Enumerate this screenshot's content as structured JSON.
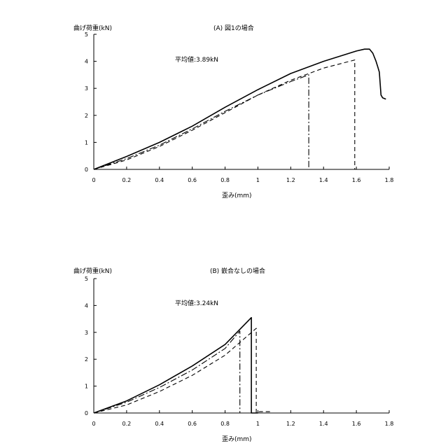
{
  "chart_data": [
    {
      "type": "line",
      "title": "(A) 図1の場合",
      "ylabel": "曲げ荷重(kN)",
      "xlabel": "歪み(mm)",
      "annotation": "平均値:3.89kN",
      "xlim": [
        0,
        1.8
      ],
      "ylim": [
        0,
        5
      ],
      "xticks": [
        "0",
        "0.2",
        "0.4",
        "0.6",
        "0.8",
        "1",
        "1.2",
        "1.4",
        "1.6",
        "1.8"
      ],
      "yticks": [
        "0",
        "1",
        "2",
        "3",
        "4",
        "5"
      ],
      "grid": false,
      "legend": "none",
      "series": [
        {
          "style": "solid",
          "x": [
            0,
            0.2,
            0.4,
            0.6,
            0.8,
            1.0,
            1.2,
            1.4,
            1.6,
            1.65,
            1.68,
            1.7,
            1.72,
            1.73,
            1.74,
            1.75,
            1.76,
            1.78
          ],
          "y": [
            0,
            0.48,
            1.0,
            1.6,
            2.3,
            2.95,
            3.55,
            4.0,
            4.38,
            4.45,
            4.45,
            4.3,
            4.0,
            3.8,
            3.6,
            2.75,
            2.65,
            2.6
          ]
        },
        {
          "style": "dashdot",
          "x": [
            0,
            0.2,
            0.4,
            0.6,
            0.8,
            1.0,
            1.2,
            1.31,
            1.31,
            1.33,
            1.48
          ],
          "y": [
            0,
            0.4,
            0.9,
            1.5,
            2.15,
            2.75,
            3.25,
            3.5,
            0,
            0,
            0
          ]
        },
        {
          "style": "dash",
          "x": [
            0,
            0.2,
            0.4,
            0.6,
            0.8,
            1.0,
            1.2,
            1.4,
            1.59,
            1.59,
            1.61,
            1.71
          ],
          "y": [
            0,
            0.35,
            0.85,
            1.45,
            2.1,
            2.75,
            3.3,
            3.75,
            4.05,
            0,
            0,
            0
          ]
        }
      ]
    },
    {
      "type": "line",
      "title": "(B) 嵌合なしの場合",
      "ylabel": "曲げ荷重(kN)",
      "xlabel": "歪み(mm)",
      "annotation": "平均値:3.24kN",
      "xlim": [
        0,
        1.8
      ],
      "ylim": [
        0,
        5
      ],
      "xticks": [
        "0",
        "0.2",
        "0.4",
        "0.6",
        "0.8",
        "1",
        "1.2",
        "1.4",
        "1.6",
        "1.8"
      ],
      "yticks": [
        "0",
        "1",
        "2",
        "3",
        "4",
        "5"
      ],
      "grid": false,
      "legend": "none",
      "series": [
        {
          "style": "solid",
          "x": [
            0,
            0.2,
            0.4,
            0.6,
            0.8,
            0.96,
            0.96,
            0.98,
            1.0
          ],
          "y": [
            0,
            0.45,
            1.05,
            1.75,
            2.55,
            3.55,
            0,
            0,
            0
          ]
        },
        {
          "style": "dashdot",
          "x": [
            0,
            0.2,
            0.4,
            0.6,
            0.8,
            0.89,
            0.89,
            0.91,
            0.96
          ],
          "y": [
            0,
            0.4,
            0.95,
            1.6,
            2.4,
            3.05,
            0,
            0,
            0
          ]
        },
        {
          "style": "dash",
          "x": [
            0,
            0.2,
            0.4,
            0.6,
            0.8,
            0.99,
            0.99,
            1.01,
            1.08
          ],
          "y": [
            0,
            0.3,
            0.8,
            1.4,
            2.15,
            3.15,
            0,
            0.05,
            0.05
          ]
        }
      ]
    }
  ]
}
